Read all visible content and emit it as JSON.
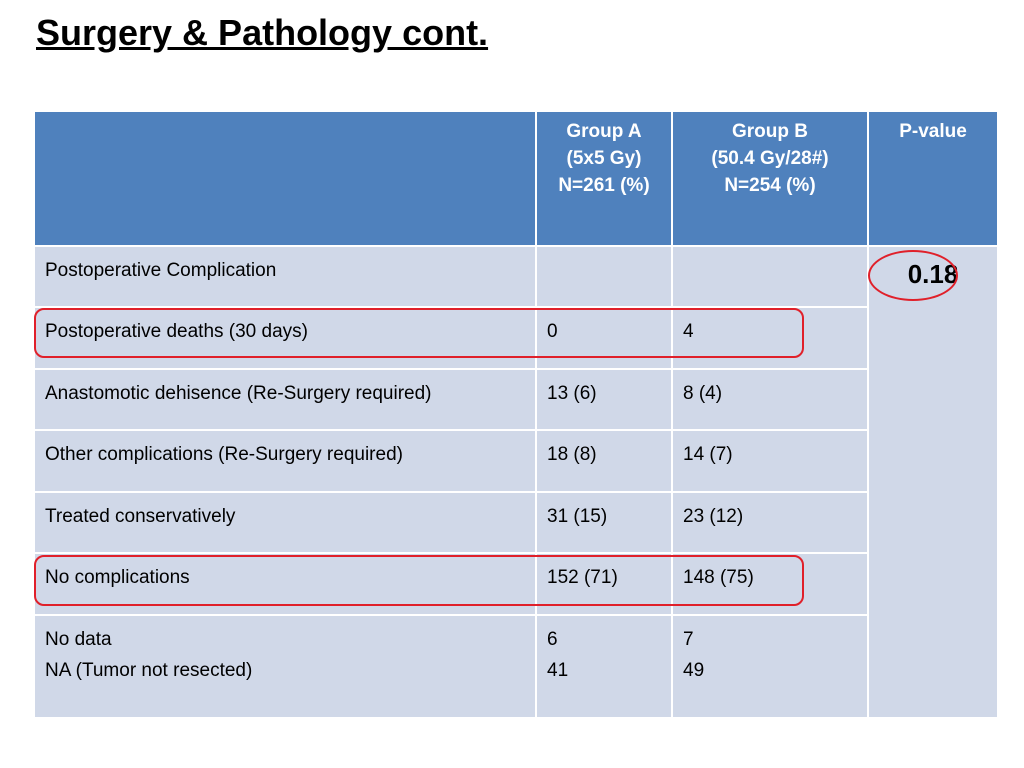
{
  "title": "Surgery & Pathology cont.",
  "table": {
    "header": [
      "",
      "Group A\n(5x5 Gy)\nN=261 (%)",
      "Group B\n(50.4 Gy/28#)\nN=254 (%)",
      "P-value"
    ],
    "p_value": "0.18",
    "rows": [
      [
        "Postoperative Complication",
        "",
        ""
      ],
      [
        "Postoperative deaths (30 days)",
        "0",
        "4"
      ],
      [
        "Anastomotic dehisence (Re-Surgery required)",
        "13 (6)",
        "8 (4)"
      ],
      [
        "Other complications  (Re-Surgery required)",
        "18 (8)",
        "14 (7)"
      ],
      [
        "Treated conservatively",
        "31 (15)",
        "23 (12)"
      ],
      [
        "No complications",
        "152 (71)",
        "148 (75)"
      ],
      [
        "No data\nNA (Tumor not resected)",
        "6\n41",
        "7\n49"
      ]
    ]
  }
}
